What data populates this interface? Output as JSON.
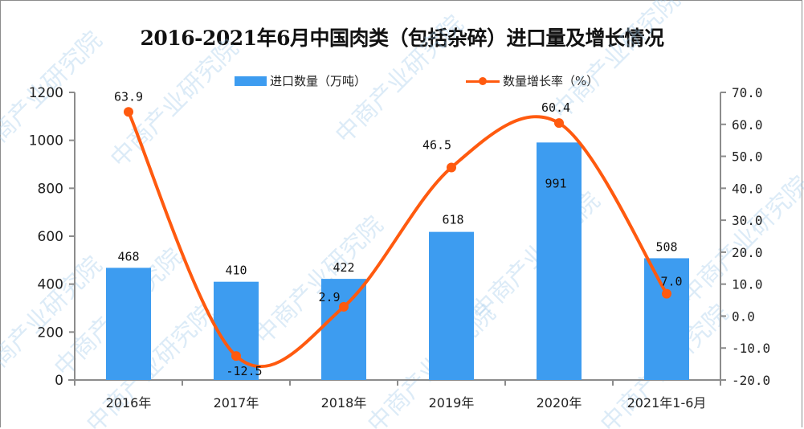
{
  "title": "2016-2021年6月中国肉类（包括杂碎）进口量及增长情况",
  "legend": {
    "bar_label": "进口数量（万吨）",
    "line_label": "数量增长率（%）"
  },
  "colors": {
    "bar": "#3d9cf0",
    "line": "#ff5a0f",
    "axis": "#8c8c8c"
  },
  "watermark": "中商产业研究院",
  "chart_data": {
    "type": "bar+line",
    "title": "2016-2021年6月中国肉类（包括杂碎）进口量及增长情况",
    "categories": [
      "2016年",
      "2017年",
      "2018年",
      "2019年",
      "2020年",
      "2021年1-6月"
    ],
    "series": [
      {
        "name": "进口数量（万吨）",
        "type": "bar",
        "axis": "left",
        "values": [
          468,
          410,
          422,
          618,
          991,
          508
        ]
      },
      {
        "name": "数量增长率（%）",
        "type": "line",
        "axis": "right",
        "smooth": true,
        "values": [
          63.9,
          -12.5,
          2.9,
          46.5,
          60.4,
          7.0
        ]
      }
    ],
    "left_axis": {
      "ylim": [
        0,
        1200
      ],
      "ticks": [
        "0",
        "200",
        "400",
        "600",
        "800",
        "1000",
        "1200"
      ]
    },
    "right_axis": {
      "ylim": [
        -20,
        70
      ],
      "ticks": [
        "-20.0",
        "-10.0",
        "0.0",
        "10.0",
        "20.0",
        "30.0",
        "40.0",
        "50.0",
        "60.0",
        "70.0"
      ]
    },
    "xlabel": "",
    "ylabel": "",
    "legend_position": "top",
    "grid": false
  }
}
